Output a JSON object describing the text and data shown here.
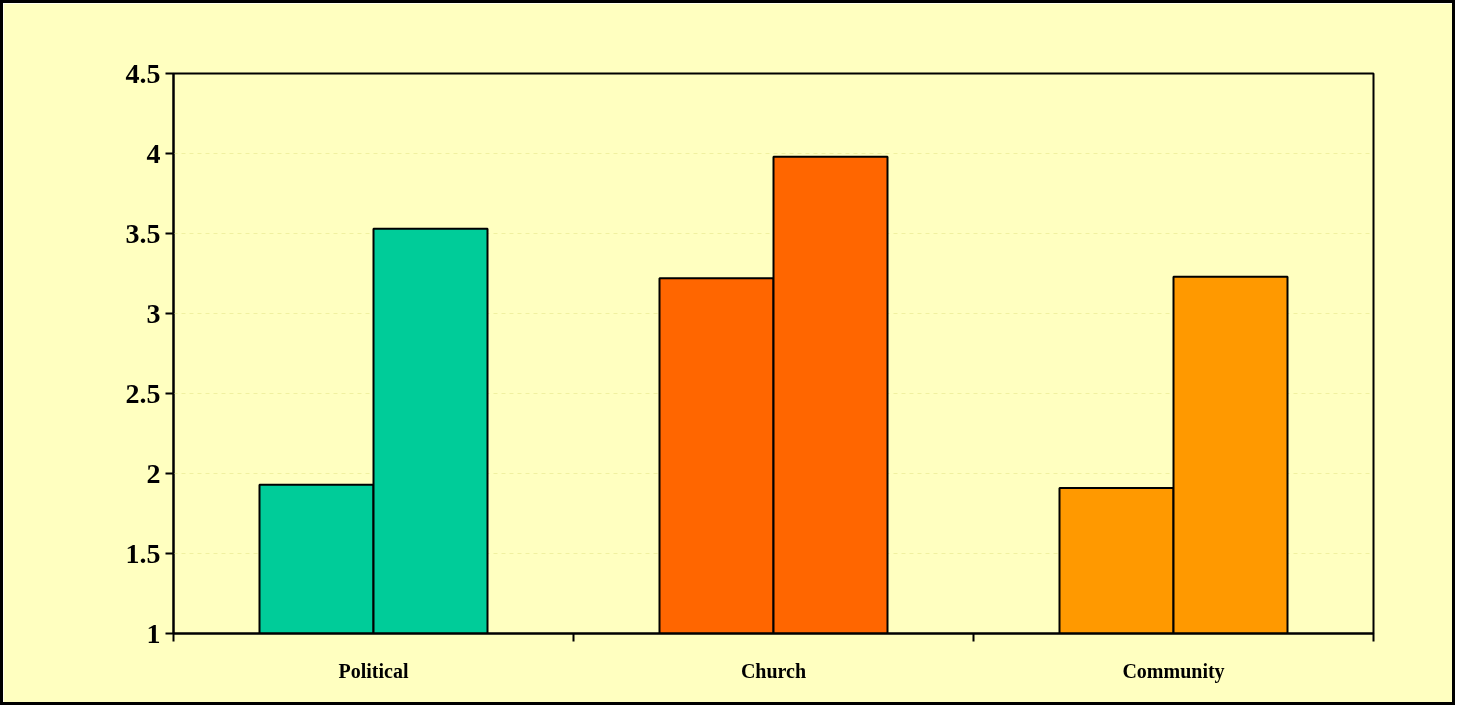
{
  "chart_data": {
    "type": "bar",
    "categories": [
      "Political",
      "Church",
      "Community"
    ],
    "series": [
      {
        "colors": [
          "#00cc99",
          "#ff6600",
          "#ff9900"
        ],
        "values": [
          1.93,
          3.22,
          1.91
        ]
      },
      {
        "colors": [
          "#00cc99",
          "#ff6600",
          "#ff9900"
        ],
        "values": [
          3.53,
          3.98,
          3.23
        ]
      }
    ],
    "ylim": [
      1,
      4.5
    ],
    "yticks": [
      1,
      1.5,
      2,
      2.5,
      3,
      3.5,
      4,
      4.5
    ],
    "grid": "y"
  }
}
